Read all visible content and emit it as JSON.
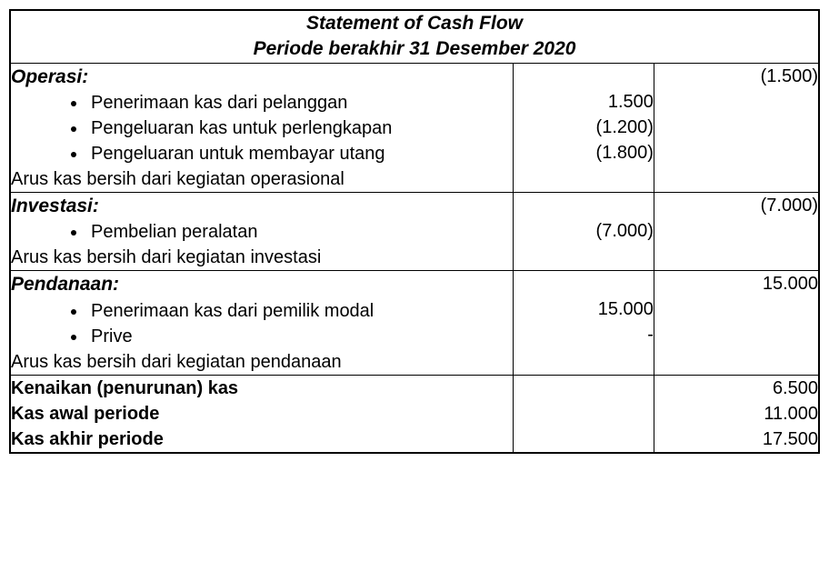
{
  "header": {
    "title": "Statement of Cash Flow",
    "subtitle": "Periode berakhir 31 Desember 2020"
  },
  "sections": {
    "operasi": {
      "heading": "Operasi:",
      "items": [
        {
          "label": "Penerimaan kas dari pelanggan",
          "amount": "1.500"
        },
        {
          "label": "Pengeluaran kas untuk perlengkapan",
          "amount": "(1.200)"
        },
        {
          "label": "Pengeluaran untuk membayar utang",
          "amount": "(1.800)"
        }
      ],
      "subtotal_label": "Arus kas bersih dari kegiatan operasional",
      "subtotal_amount": "(1.500)"
    },
    "investasi": {
      "heading": "Investasi:",
      "items": [
        {
          "label": "Pembelian peralatan",
          "amount": "(7.000)"
        }
      ],
      "subtotal_label": "Arus kas bersih dari kegiatan investasi",
      "subtotal_amount": "(7.000)"
    },
    "pendanaan": {
      "heading": "Pendanaan:",
      "items": [
        {
          "label": "Penerimaan kas dari pemilik modal",
          "amount": "15.000"
        },
        {
          "label": "Prive",
          "amount": "-"
        }
      ],
      "subtotal_label": "Arus kas bersih dari kegiatan pendanaan",
      "subtotal_amount": "15.000"
    }
  },
  "summary": {
    "lines": [
      {
        "label": "Kenaikan (penurunan) kas",
        "amount": "6.500"
      },
      {
        "label": "Kas awal periode",
        "amount": "11.000"
      },
      {
        "label": "Kas akhir periode",
        "amount": "17.500"
      }
    ]
  },
  "style": {
    "font_family": "Arial",
    "heading_fontsize": 21,
    "body_fontsize": 20,
    "border_color": "#000000",
    "background_color": "#ffffff",
    "text_color": "#000000"
  }
}
